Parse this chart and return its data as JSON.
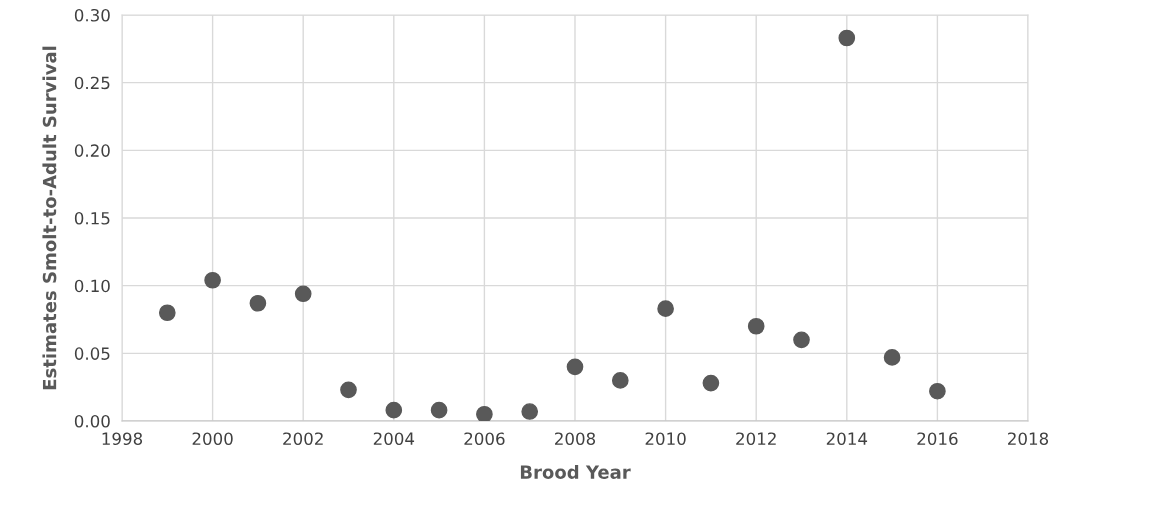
{
  "chart_data": {
    "type": "scatter",
    "xlabel": "Brood Year",
    "ylabel": "Estimates Smolt-to-Adult Survival",
    "x": [
      1999,
      2000,
      2001,
      2002,
      2003,
      2004,
      2005,
      2006,
      2007,
      2008,
      2009,
      2010,
      2011,
      2012,
      2013,
      2014,
      2015,
      2016
    ],
    "series": [
      {
        "color": "#595959",
        "values": [
          0.08,
          0.104,
          0.087,
          0.094,
          0.023,
          0.008,
          0.008,
          0.005,
          0.007,
          0.04,
          0.03,
          0.083,
          0.028,
          0.07,
          0.06,
          0.283,
          0.047,
          0.022
        ]
      }
    ],
    "xlim": [
      1998,
      2018
    ],
    "xticks": [
      1998,
      2000,
      2002,
      2004,
      2006,
      2008,
      2010,
      2012,
      2014,
      2016,
      2018
    ],
    "ylim": [
      0,
      0.3
    ],
    "yticks": [
      {
        "value": 0,
        "label": "0.00"
      },
      {
        "value": 0.05,
        "label": "0.05"
      },
      {
        "value": 0.1,
        "label": "0.10"
      },
      {
        "value": 0.15,
        "label": "0.15"
      },
      {
        "value": 0.2,
        "label": "0.20"
      },
      {
        "value": 0.25,
        "label": "0.25"
      },
      {
        "value": 0.3,
        "label": "0.30"
      }
    ],
    "grid": true,
    "marker": "circle"
  }
}
